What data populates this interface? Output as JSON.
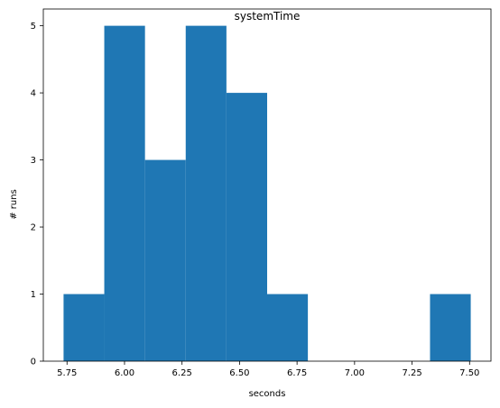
{
  "chart_data": {
    "type": "bar",
    "subtype": "histogram",
    "title": "systemTime",
    "xlabel": "seconds",
    "ylabel": "# runs",
    "bin_edges": [
      5.735,
      5.912,
      6.089,
      6.266,
      6.443,
      6.62,
      6.797,
      6.974,
      7.151,
      7.328,
      7.505
    ],
    "counts": [
      1,
      5,
      3,
      5,
      4,
      1,
      0,
      0,
      0,
      1
    ],
    "xlim": [
      5.647,
      7.593
    ],
    "ylim": [
      0,
      5.25
    ],
    "x_ticks": [
      "5.75",
      "6.00",
      "6.25",
      "6.50",
      "6.75",
      "7.00",
      "7.25",
      "7.50"
    ],
    "x_tick_values": [
      5.75,
      6.0,
      6.25,
      6.5,
      6.75,
      7.0,
      7.25,
      7.5
    ],
    "y_ticks": [
      "0",
      "1",
      "2",
      "3",
      "4",
      "5"
    ],
    "y_tick_values": [
      0,
      1,
      2,
      3,
      4,
      5
    ],
    "bar_color": "#1f77b4",
    "grid": false,
    "legend": "none"
  }
}
